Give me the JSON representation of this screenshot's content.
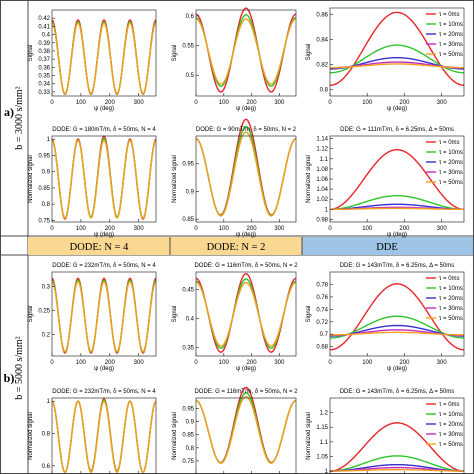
{
  "figure": {
    "rows": [
      {
        "letter": "a)",
        "b_label": "b = 3000 s/mm²"
      },
      {
        "letter": "b)",
        "b_label": "b = 5000 s/mm²"
      }
    ],
    "header_cells": [
      {
        "label": "DODE: N = 4",
        "color": "#fad892"
      },
      {
        "label": "DODE: N = 2",
        "color": "#fad892"
      },
      {
        "label": "DDE",
        "color": "#9dc3e6"
      }
    ]
  },
  "legend": {
    "title_prefix": "τ",
    "entries": [
      {
        "label": "τ = 0ms",
        "color": "#e8262a"
      },
      {
        "label": "τ = 10ms",
        "color": "#2ec52b"
      },
      {
        "label": "τ = 20ms",
        "color": "#3a2fd0"
      },
      {
        "label": "τ = 30ms",
        "color": "#c62ec2"
      },
      {
        "label": "τ = 50ms",
        "color": "#f5a01e"
      }
    ]
  },
  "chart_data": [
    {
      "id": "a-top-dode4",
      "type": "line",
      "title": "",
      "ylabel": "Signal",
      "xlabel": "ψ (deg)",
      "xlim": [
        0,
        360
      ],
      "ylim": [
        0.325,
        0.43
      ],
      "xticks": [
        0,
        100,
        200,
        300
      ],
      "yticks": [
        0.33,
        0.34,
        0.35,
        0.36,
        0.37,
        0.38,
        0.39,
        0.4,
        0.41,
        0.42
      ],
      "series": [
        {
          "name": "τ = 0ms",
          "mean": 0.3725,
          "amp": 0.0455,
          "n": 4
        },
        {
          "name": "τ = 10ms",
          "mean": 0.3715,
          "amp": 0.044,
          "n": 4
        },
        {
          "name": "τ = 50ms",
          "mean": 0.371,
          "amp": 0.043,
          "n": 4
        }
      ]
    },
    {
      "id": "a-top-dode2",
      "type": "line",
      "title": "",
      "ylabel": "Signal",
      "xlabel": "ψ (deg)",
      "xlim": [
        0,
        360
      ],
      "ylim": [
        0.465,
        0.61
      ],
      "xticks": [
        0,
        100,
        200,
        300
      ],
      "yticks": [
        0.5,
        0.55,
        0.6
      ],
      "series": [
        {
          "name": "τ = 0ms",
          "mean": 0.537,
          "amp": 0.066,
          "n": 2,
          "bump": 0.01
        },
        {
          "name": "τ = 10ms",
          "mean": 0.539,
          "amp": 0.058,
          "n": 2,
          "bump": 0.005
        },
        {
          "name": "τ = 50ms",
          "mean": 0.54,
          "amp": 0.055,
          "n": 2,
          "bump": 0.0
        }
      ]
    },
    {
      "id": "a-top-dde",
      "type": "line",
      "title": "",
      "ylabel": "Signal",
      "xlabel": "ψ (deg)",
      "xlim": [
        0,
        360
      ],
      "ylim": [
        0.795,
        0.865
      ],
      "xticks": [
        0,
        100,
        200,
        300
      ],
      "yticks": [
        0.8,
        0.82,
        0.84,
        0.86
      ],
      "series": [
        {
          "name": "τ = 0ms",
          "base": 0.8035,
          "peak": 0.8615
        },
        {
          "name": "τ = 10ms",
          "base": 0.8135,
          "peak": 0.8355
        },
        {
          "name": "τ = 20ms",
          "base": 0.8165,
          "peak": 0.8255
        },
        {
          "name": "τ = 30ms",
          "base": 0.8175,
          "peak": 0.822
        },
        {
          "name": "τ = 50ms",
          "base": 0.8175,
          "peak": 0.8205
        }
      ]
    },
    {
      "id": "a-bot-dode4",
      "type": "line",
      "title": "DODE: G = 180mT/m, δ = 50ms, N = 4",
      "ylabel": "Normalized signal",
      "xlabel": "ψ (deg)",
      "xlim": [
        0,
        360
      ],
      "ylim": [
        0.745,
        1.01
      ],
      "xticks": [
        0,
        100,
        200,
        300
      ],
      "yticks": [
        0.75,
        0.8,
        0.85,
        0.9,
        0.95,
        1
      ],
      "series": [
        {
          "name": "τ = 0ms",
          "mean": 0.877,
          "amp": 0.123,
          "n": 4,
          "bump": 0.01
        },
        {
          "name": "τ = 10ms",
          "mean": 0.877,
          "amp": 0.12,
          "n": 4,
          "bump": 0.006
        },
        {
          "name": "τ = 50ms",
          "mean": 0.877,
          "amp": 0.12,
          "n": 4,
          "bump": 0.0
        }
      ]
    },
    {
      "id": "a-bot-dode2",
      "type": "line",
      "title": "DODE: G = 90mT/m, δ = 50ms, N = 2",
      "ylabel": "Normalized signal",
      "xlabel": "ψ (deg)",
      "xlim": [
        0,
        360
      ],
      "ylim": [
        0.845,
        1.0
      ],
      "xticks": [
        0,
        100,
        200,
        300
      ],
      "yticks": [
        0.85,
        0.9,
        0.95
      ],
      "series": [
        {
          "name": "τ = 0ms",
          "mean": 0.925,
          "amp": 0.07,
          "n": 2,
          "bump": 0.035
        },
        {
          "name": "τ = 10ms",
          "mean": 0.925,
          "amp": 0.07,
          "n": 2,
          "bump": 0.022
        },
        {
          "name": "τ = 50ms",
          "mean": 0.925,
          "amp": 0.07,
          "n": 2,
          "bump": 0.012
        }
      ]
    },
    {
      "id": "a-bot-dde",
      "type": "line",
      "title": "DDE: G = 111mT/m, δ = 6.25ms, Δ = 50ms",
      "ylabel": "Normalized signal",
      "xlabel": "ψ (deg)",
      "xlim": [
        0,
        360
      ],
      "ylim": [
        0.975,
        1.145
      ],
      "xticks": [
        0,
        100,
        200,
        300
      ],
      "yticks": [
        0.98,
        1,
        1.02,
        1.04,
        1.06,
        1.08,
        1.1,
        1.12,
        1.14
      ],
      "series": [
        {
          "name": "τ = 0ms",
          "base": 1.0,
          "peak": 1.118
        },
        {
          "name": "τ = 10ms",
          "base": 1.0,
          "peak": 1.027
        },
        {
          "name": "τ = 20ms",
          "base": 1.0,
          "peak": 1.01
        },
        {
          "name": "τ = 30ms",
          "base": 1.0,
          "peak": 1.004
        },
        {
          "name": "τ = 50ms",
          "base": 1.0,
          "peak": 1.002
        }
      ]
    },
    {
      "id": "b-top-dode4",
      "type": "line",
      "title": "DODE: G = 232mT/m, δ = 50ms, N = 4",
      "ylabel": "Signal",
      "xlabel": "ψ (deg)",
      "xlim": [
        0,
        360
      ],
      "ylim": [
        0.155,
        0.33
      ],
      "xticks": [
        0,
        100,
        200,
        300
      ],
      "yticks": [
        0.2,
        0.25,
        0.3
      ],
      "series": [
        {
          "name": "τ = 0ms",
          "mean": 0.239,
          "amp": 0.078,
          "n": 4
        },
        {
          "name": "τ = 10ms",
          "mean": 0.238,
          "amp": 0.075,
          "n": 4
        },
        {
          "name": "τ = 50ms",
          "mean": 0.237,
          "amp": 0.073,
          "n": 4
        }
      ]
    },
    {
      "id": "b-top-dode2",
      "type": "line",
      "title": "DODE: G = 116mT/m, δ = 50ms, N = 2",
      "ylabel": "Signal",
      "xlabel": "ψ (deg)",
      "xlim": [
        0,
        360
      ],
      "ylim": [
        0.335,
        0.48
      ],
      "xticks": [
        0,
        100,
        200,
        300
      ],
      "yticks": [
        0.35,
        0.4,
        0.45
      ],
      "series": [
        {
          "name": "τ = 0ms",
          "mean": 0.405,
          "amp": 0.064,
          "n": 2,
          "bump": 0.008
        },
        {
          "name": "τ = 10ms",
          "mean": 0.406,
          "amp": 0.058,
          "n": 2,
          "bump": 0.004
        },
        {
          "name": "τ = 50ms",
          "mean": 0.407,
          "amp": 0.055,
          "n": 2,
          "bump": 0.0
        }
      ]
    },
    {
      "id": "b-top-dde",
      "type": "line",
      "title": "DDE: G = 143mT/m, δ = 6.25ms, Δ = 50ms",
      "ylabel": "Signal",
      "xlabel": "ψ (deg)",
      "xlim": [
        0,
        360
      ],
      "ylim": [
        0.665,
        0.8
      ],
      "xticks": [
        0,
        100,
        200,
        300
      ],
      "yticks": [
        0.68,
        0.7,
        0.72,
        0.74,
        0.76,
        0.78
      ],
      "series": [
        {
          "name": "τ = 0ms",
          "base": 0.675,
          "peak": 0.781
        },
        {
          "name": "τ = 10ms",
          "base": 0.694,
          "peak": 0.729
        },
        {
          "name": "τ = 20ms",
          "base": 0.697,
          "peak": 0.714
        },
        {
          "name": "τ = 30ms",
          "base": 0.698,
          "peak": 0.707
        },
        {
          "name": "τ = 50ms",
          "base": 0.699,
          "peak": 0.703
        }
      ]
    },
    {
      "id": "b-bot-dode4",
      "type": "line",
      "title": "DODE: G = 232mT/m, δ = 50ms, N = 4",
      "ylabel": "Normalized signal",
      "xlabel": "ψ (deg)",
      "xlim": [
        0,
        360
      ],
      "ylim": [
        0.55,
        1.02
      ],
      "xticks": [
        0,
        100,
        200,
        300
      ],
      "yticks": [
        0.6,
        0.8,
        1
      ],
      "series": [
        {
          "name": "τ = 0ms",
          "mean": 0.78,
          "amp": 0.22,
          "n": 4,
          "bump": 0.015
        },
        {
          "name": "τ = 10ms",
          "mean": 0.78,
          "amp": 0.22,
          "n": 4,
          "bump": 0.008
        },
        {
          "name": "τ = 50ms",
          "mean": 0.78,
          "amp": 0.22,
          "n": 4,
          "bump": 0.0
        }
      ]
    },
    {
      "id": "b-bot-dode2",
      "type": "line",
      "title": "DODE: G = 116mT/m, δ = 50ms, N = 2",
      "ylabel": "Normalized signal",
      "xlabel": "ψ (deg)",
      "xlim": [
        0,
        360
      ],
      "ylim": [
        0.7,
        0.99
      ],
      "xticks": [
        0,
        100,
        200,
        300
      ],
      "yticks": [
        0.75,
        0.8,
        0.85,
        0.9,
        0.95
      ],
      "series": [
        {
          "name": "τ = 0ms",
          "mean": 0.86,
          "amp": 0.12,
          "n": 2,
          "bump": 0.05
        },
        {
          "name": "τ = 10ms",
          "mean": 0.86,
          "amp": 0.12,
          "n": 2,
          "bump": 0.03
        },
        {
          "name": "τ = 50ms",
          "mean": 0.86,
          "amp": 0.12,
          "n": 2,
          "bump": 0.015
        }
      ]
    },
    {
      "id": "b-bot-dde",
      "type": "line",
      "title": "DDE: G = 143mT/m, δ = 6.25ms, Δ = 50ms",
      "ylabel": "Normalized signal",
      "xlabel": "ψ (deg)",
      "xlim": [
        0,
        360
      ],
      "ylim": [
        0.99,
        1.25
      ],
      "xticks": [
        0,
        100,
        200,
        300
      ],
      "yticks": [
        1,
        1.05,
        1.1,
        1.15,
        1.2
      ],
      "series": [
        {
          "name": "τ = 0ms",
          "base": 1.0,
          "peak": 1.165
        },
        {
          "name": "τ = 10ms",
          "base": 1.0,
          "peak": 1.052
        },
        {
          "name": "τ = 20ms",
          "base": 1.0,
          "peak": 1.022
        },
        {
          "name": "τ = 30ms",
          "base": 1.0,
          "peak": 1.012
        },
        {
          "name": "τ = 50ms",
          "base": 1.0,
          "peak": 1.005
        }
      ]
    }
  ]
}
